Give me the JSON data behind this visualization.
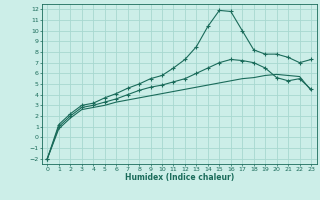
{
  "xlabel": "Humidex (Indice chaleur)",
  "background_color": "#cceee8",
  "grid_color": "#a8d8d0",
  "line_color": "#1a6b5a",
  "xlim": [
    -0.5,
    23.5
  ],
  "ylim": [
    -2.5,
    12.5
  ],
  "xticks": [
    0,
    1,
    2,
    3,
    4,
    5,
    6,
    7,
    8,
    9,
    10,
    11,
    12,
    13,
    14,
    15,
    16,
    17,
    18,
    19,
    20,
    21,
    22,
    23
  ],
  "yticks": [
    -2,
    -1,
    0,
    1,
    2,
    3,
    4,
    5,
    6,
    7,
    8,
    9,
    10,
    11,
    12
  ],
  "curve1_x": [
    0,
    1,
    2,
    3,
    4,
    5,
    6,
    7,
    8,
    9,
    10,
    11,
    12,
    13,
    14,
    15,
    16,
    17,
    18,
    19,
    20,
    21,
    22,
    23
  ],
  "curve1_y": [
    -2.0,
    1.2,
    2.2,
    3.0,
    3.2,
    3.7,
    4.1,
    4.6,
    5.0,
    5.5,
    5.8,
    6.5,
    7.3,
    8.5,
    10.4,
    11.9,
    11.8,
    10.0,
    8.2,
    7.8,
    7.8,
    7.5,
    7.0,
    7.3
  ],
  "curve2_x": [
    0,
    1,
    2,
    3,
    4,
    5,
    6,
    7,
    8,
    9,
    10,
    11,
    12,
    13,
    14,
    15,
    16,
    17,
    18,
    19,
    20,
    21,
    22,
    23
  ],
  "curve2_y": [
    -2.0,
    1.0,
    2.0,
    2.8,
    3.0,
    3.3,
    3.6,
    4.0,
    4.4,
    4.7,
    4.9,
    5.2,
    5.5,
    6.0,
    6.5,
    7.0,
    7.3,
    7.2,
    7.0,
    6.5,
    5.6,
    5.3,
    5.5,
    4.5
  ],
  "curve3_x": [
    0,
    1,
    2,
    3,
    4,
    5,
    6,
    7,
    8,
    9,
    10,
    11,
    12,
    13,
    14,
    15,
    16,
    17,
    18,
    19,
    20,
    21,
    22,
    23
  ],
  "curve3_y": [
    -2.0,
    0.8,
    1.8,
    2.6,
    2.8,
    3.0,
    3.3,
    3.5,
    3.7,
    3.9,
    4.1,
    4.3,
    4.5,
    4.7,
    4.9,
    5.1,
    5.3,
    5.5,
    5.6,
    5.8,
    5.9,
    5.8,
    5.7,
    4.4
  ]
}
